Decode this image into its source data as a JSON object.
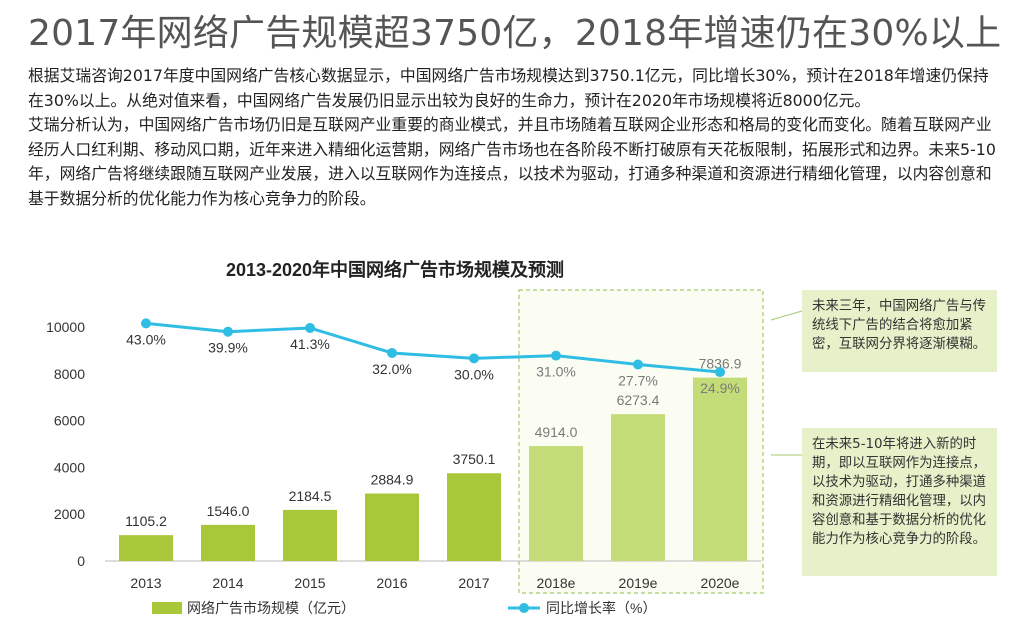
{
  "title": "2017年网络广告规模超3750亿，2018年增速仍在30%以上",
  "body": {
    "para1": "根据艾瑞咨询2017年度中国网络广告核心数据显示，中国网络广告市场规模达到3750.1亿元，同比增长30%，预计在2018年增速仍保持在30%以上。从绝对值来看，中国网络广告发展仍旧显示出较为良好的生命力，预计在2020年市场规模将近8000亿元。",
    "para2": "艾瑞分析认为，中国网络广告市场仍旧是互联网产业重要的商业模式，并且市场随着互联网企业形态和格局的变化而变化。随着互联网产业经历人口红利期、移动风口期，近年来进入精细化运营期，网络广告市场也在各阶段不断打破原有天花板限制，拓展形式和边界。未来5-10年，网络广告将继续跟随互联网产业发展，进入以互联网作为连接点，以技术为驱动，打通多种渠道和资源进行精细化管理，以内容创意和基于数据分析的优化能力作为核心竞争力的阶段。"
  },
  "notes": {
    "top": "未来三年，中国网络广告与传统线下广告的结合将愈加紧密，互联网分界将逐渐模糊。",
    "bottom": "在未来5-10年将进入新的时期，即以互联网作为连接点，以技术为驱动，打通多种渠道和资源进行精细化管理，以内容创意和基于数据分析的优化能力作为核心竞争力的阶段。"
  },
  "chart_data": {
    "type": "bar",
    "title": "2013-2020年中国网络广告市场规模及预测",
    "categories": [
      "2013",
      "2014",
      "2015",
      "2016",
      "2017",
      "2018e",
      "2019e",
      "2020e"
    ],
    "series": [
      {
        "name": "网络广告市场规模（亿元）",
        "type": "bar",
        "values": [
          1105.2,
          1546.0,
          2184.5,
          2884.9,
          3750.1,
          4914.0,
          6273.4,
          7836.9
        ],
        "labels": [
          "1105.2",
          "1546.0",
          "2184.5",
          "2884.9",
          "3750.1",
          "4914.0",
          "6273.4",
          "7836.9"
        ],
        "color": "#a8c83a",
        "forecast_color": "#c4dc78"
      },
      {
        "name": "同比增长率（%）",
        "type": "line",
        "values": [
          43.0,
          39.9,
          41.3,
          32.0,
          30.0,
          31.0,
          27.7,
          24.9
        ],
        "labels": [
          "43.0%",
          "39.9%",
          "41.3%",
          "32.0%",
          "30.0%",
          "31.0%",
          "27.7%",
          "24.9%"
        ],
        "color": "#2fbde3"
      }
    ],
    "y_ticks": [
      "0",
      "2000",
      "4000",
      "6000",
      "8000",
      "10000"
    ],
    "ylim": [
      0,
      10000
    ],
    "forecast_from_index": 5,
    "grid": false,
    "legend_position": "bottom"
  }
}
